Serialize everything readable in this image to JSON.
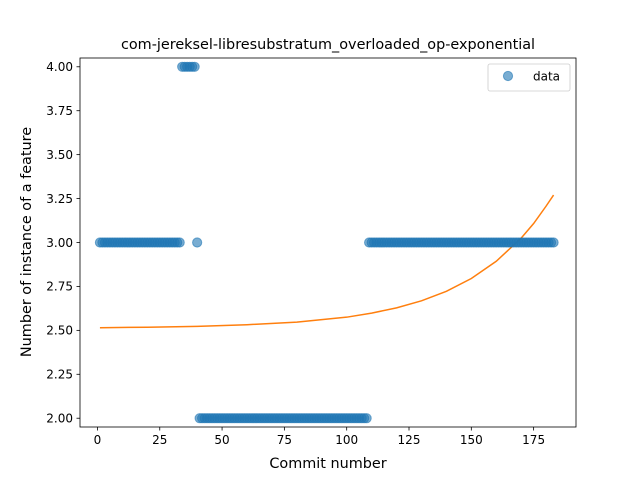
{
  "chart_data": {
    "type": "scatter",
    "title": "com-jereksel-libresubstratum_overloaded_op-exponential",
    "xlabel": "Commit number",
    "ylabel": "Number of instance of a feature",
    "xlim": [
      -7,
      192
    ],
    "ylim": [
      1.95,
      4.05
    ],
    "xticks": [
      0,
      25,
      50,
      75,
      100,
      125,
      150,
      175
    ],
    "yticks": [
      2.0,
      2.25,
      2.5,
      2.75,
      3.0,
      3.25,
      3.5,
      3.75,
      4.0
    ],
    "ytick_labels": [
      "2.00",
      "2.25",
      "2.50",
      "2.75",
      "3.00",
      "3.25",
      "3.50",
      "3.75",
      "4.00"
    ],
    "grid": false,
    "legend": {
      "placement": "top-right",
      "entries": [
        "data"
      ]
    },
    "series": [
      {
        "name": "data",
        "kind": "scatter",
        "color": "#1f77b4",
        "segments": [
          {
            "x_start": 1,
            "x_end": 33,
            "y": 3
          },
          {
            "x_start": 34,
            "x_end": 39,
            "y": 4
          },
          {
            "x_start": 40,
            "x_end": 40,
            "y": 3
          },
          {
            "x_start": 41,
            "x_end": 108,
            "y": 2
          },
          {
            "x_start": 109,
            "x_end": 183,
            "y": 3
          }
        ]
      },
      {
        "kind": "line",
        "color": "#ff7f0e",
        "x": [
          1,
          20,
          40,
          60,
          80,
          100,
          110,
          120,
          130,
          140,
          150,
          160,
          170,
          175,
          180,
          183
        ],
        "y": [
          2.515,
          2.518,
          2.523,
          2.532,
          2.547,
          2.575,
          2.598,
          2.628,
          2.668,
          2.722,
          2.795,
          2.893,
          3.025,
          3.108,
          3.207,
          3.27
        ]
      }
    ]
  }
}
